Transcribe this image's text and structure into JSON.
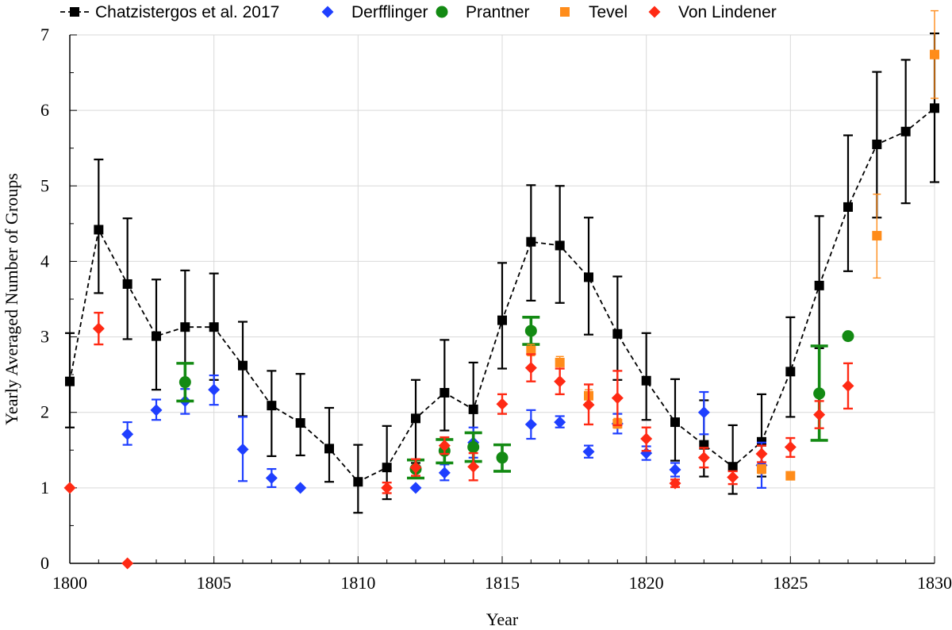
{
  "chart_data": {
    "type": "scatter",
    "xlabel": "Year",
    "ylabel": "Yearly Averaged Number of Groups",
    "xlim": [
      1800,
      1830
    ],
    "ylim": [
      0,
      7
    ],
    "xticks": [
      1800,
      1805,
      1810,
      1815,
      1820,
      1825,
      1830
    ],
    "yticks": [
      0,
      1,
      2,
      3,
      4,
      5,
      6,
      7
    ],
    "grid": true,
    "legend_position": "top",
    "series": [
      {
        "name": "Chatzistergos et al. 2017",
        "marker": "square",
        "color": "#000000",
        "line": "dashed",
        "points": [
          {
            "x": 1800,
            "y": 2.41,
            "lo": 1.8,
            "hi": 3.05
          },
          {
            "x": 1801,
            "y": 4.42,
            "lo": 3.58,
            "hi": 5.35
          },
          {
            "x": 1802,
            "y": 3.7,
            "lo": 2.97,
            "hi": 4.57
          },
          {
            "x": 1803,
            "y": 3.01,
            "lo": 2.3,
            "hi": 3.76
          },
          {
            "x": 1804,
            "y": 3.13,
            "lo": 2.4,
            "hi": 3.88
          },
          {
            "x": 1805,
            "y": 3.13,
            "lo": 2.43,
            "hi": 3.84
          },
          {
            "x": 1806,
            "y": 2.62,
            "lo": 1.95,
            "hi": 3.2
          },
          {
            "x": 1807,
            "y": 2.09,
            "lo": 1.42,
            "hi": 2.55
          },
          {
            "x": 1808,
            "y": 1.86,
            "lo": 1.43,
            "hi": 2.51
          },
          {
            "x": 1809,
            "y": 1.52,
            "lo": 1.08,
            "hi": 2.06
          },
          {
            "x": 1810,
            "y": 1.08,
            "lo": 0.67,
            "hi": 1.57
          },
          {
            "x": 1811,
            "y": 1.27,
            "lo": 0.85,
            "hi": 1.82
          },
          {
            "x": 1812,
            "y": 1.92,
            "lo": 1.33,
            "hi": 2.43
          },
          {
            "x": 1813,
            "y": 2.26,
            "lo": 1.76,
            "hi": 2.96
          },
          {
            "x": 1814,
            "y": 2.04,
            "lo": 1.55,
            "hi": 2.66
          },
          {
            "x": 1815,
            "y": 3.22,
            "lo": 2.58,
            "hi": 3.98
          },
          {
            "x": 1816,
            "y": 4.26,
            "lo": 3.48,
            "hi": 5.01
          },
          {
            "x": 1817,
            "y": 4.21,
            "lo": 3.45,
            "hi": 5.0
          },
          {
            "x": 1818,
            "y": 3.79,
            "lo": 3.03,
            "hi": 4.58
          },
          {
            "x": 1819,
            "y": 3.04,
            "lo": 2.43,
            "hi": 3.8
          },
          {
            "x": 1820,
            "y": 2.42,
            "lo": 1.9,
            "hi": 3.05
          },
          {
            "x": 1821,
            "y": 1.87,
            "lo": 1.36,
            "hi": 2.44
          },
          {
            "x": 1822,
            "y": 1.57,
            "lo": 1.15,
            "hi": 2.16
          },
          {
            "x": 1823,
            "y": 1.28,
            "lo": 0.92,
            "hi": 1.83
          },
          {
            "x": 1824,
            "y": 1.61,
            "lo": 1.15,
            "hi": 2.24
          },
          {
            "x": 1825,
            "y": 2.54,
            "lo": 1.94,
            "hi": 3.26
          },
          {
            "x": 1826,
            "y": 3.68,
            "lo": 2.85,
            "hi": 4.6
          },
          {
            "x": 1827,
            "y": 4.72,
            "lo": 3.87,
            "hi": 5.67
          },
          {
            "x": 1828,
            "y": 5.55,
            "lo": 4.58,
            "hi": 6.51
          },
          {
            "x": 1829,
            "y": 5.72,
            "lo": 4.77,
            "hi": 6.67
          },
          {
            "x": 1830,
            "y": 6.03,
            "lo": 5.05,
            "hi": 7.02
          }
        ]
      },
      {
        "name": "Derfflinger",
        "marker": "diamond",
        "color": "#1f3fff",
        "points": [
          {
            "x": 1802,
            "y": 1.71,
            "lo": 1.57,
            "hi": 1.87
          },
          {
            "x": 1803,
            "y": 2.03,
            "lo": 1.9,
            "hi": 2.17
          },
          {
            "x": 1804,
            "y": 2.15,
            "lo": 1.98,
            "hi": 2.31
          },
          {
            "x": 1805,
            "y": 2.3,
            "lo": 2.1,
            "hi": 2.49
          },
          {
            "x": 1806,
            "y": 1.51,
            "lo": 1.09,
            "hi": 1.94
          },
          {
            "x": 1807,
            "y": 1.13,
            "lo": 1.01,
            "hi": 1.25
          },
          {
            "x": 1808,
            "y": 1.0
          },
          {
            "x": 1812,
            "y": 1.0
          },
          {
            "x": 1813,
            "y": 1.2,
            "lo": 1.1,
            "hi": 1.31
          },
          {
            "x": 1814,
            "y": 1.6,
            "lo": 1.4,
            "hi": 1.8
          },
          {
            "x": 1816,
            "y": 1.84,
            "lo": 1.65,
            "hi": 2.03
          },
          {
            "x": 1817,
            "y": 1.87,
            "lo": 1.8,
            "hi": 1.95
          },
          {
            "x": 1818,
            "y": 1.48,
            "lo": 1.4,
            "hi": 1.56
          },
          {
            "x": 1819,
            "y": 1.85,
            "lo": 1.72,
            "hi": 1.98
          },
          {
            "x": 1820,
            "y": 1.46,
            "lo": 1.37,
            "hi": 1.55
          },
          {
            "x": 1821,
            "y": 1.24,
            "lo": 1.15,
            "hi": 1.33
          },
          {
            "x": 1822,
            "y": 2.0,
            "lo": 1.71,
            "hi": 2.27
          },
          {
            "x": 1824,
            "y": 1.3,
            "lo": 1.0,
            "hi": 1.6
          }
        ]
      },
      {
        "name": "Prantner",
        "marker": "circle",
        "color": "#138a13",
        "points": [
          {
            "x": 1804,
            "y": 2.4,
            "lo": 2.15,
            "hi": 2.65
          },
          {
            "x": 1812,
            "y": 1.25,
            "lo": 1.13,
            "hi": 1.37
          },
          {
            "x": 1813,
            "y": 1.49,
            "lo": 1.33,
            "hi": 1.64
          },
          {
            "x": 1814,
            "y": 1.54,
            "lo": 1.35,
            "hi": 1.73
          },
          {
            "x": 1815,
            "y": 1.4,
            "lo": 1.22,
            "hi": 1.57
          },
          {
            "x": 1816,
            "y": 3.08,
            "lo": 2.9,
            "hi": 3.26
          },
          {
            "x": 1826,
            "y": 2.25,
            "lo": 1.63,
            "hi": 2.88
          },
          {
            "x": 1827,
            "y": 3.01
          }
        ]
      },
      {
        "name": "Tevel",
        "marker": "square",
        "color": "#ff8c1a",
        "points": [
          {
            "x": 1816,
            "y": 2.82,
            "lo": 2.75,
            "hi": 2.9
          },
          {
            "x": 1817,
            "y": 2.66,
            "lo": 2.58,
            "hi": 2.74
          },
          {
            "x": 1818,
            "y": 2.22,
            "lo": 2.13,
            "hi": 2.3
          },
          {
            "x": 1819,
            "y": 1.85,
            "lo": 1.79,
            "hi": 1.92
          },
          {
            "x": 1824,
            "y": 1.25,
            "lo": 1.19,
            "hi": 1.3
          },
          {
            "x": 1825,
            "y": 1.16,
            "lo": 1.13,
            "hi": 1.2
          },
          {
            "x": 1828,
            "y": 4.34,
            "lo": 3.78,
            "hi": 4.89
          },
          {
            "x": 1830,
            "y": 6.74,
            "lo": 6.16,
            "hi": 7.32
          }
        ]
      },
      {
        "name": "Von Lindener",
        "marker": "diamond",
        "color": "#ff2a14",
        "points": [
          {
            "x": 1800,
            "y": 1.0
          },
          {
            "x": 1801,
            "y": 3.11,
            "lo": 2.9,
            "hi": 3.32
          },
          {
            "x": 1802,
            "y": 0.0
          },
          {
            "x": 1811,
            "y": 1.0,
            "lo": 0.93,
            "hi": 1.07
          },
          {
            "x": 1812,
            "y": 1.27,
            "lo": 1.16,
            "hi": 1.38
          },
          {
            "x": 1813,
            "y": 1.56,
            "lo": 1.45,
            "hi": 1.67
          },
          {
            "x": 1814,
            "y": 1.28,
            "lo": 1.1,
            "hi": 1.46
          },
          {
            "x": 1815,
            "y": 2.11,
            "lo": 1.98,
            "hi": 2.24
          },
          {
            "x": 1816,
            "y": 2.59,
            "lo": 2.41,
            "hi": 2.77
          },
          {
            "x": 1817,
            "y": 2.41,
            "lo": 2.24,
            "hi": 2.58
          },
          {
            "x": 1818,
            "y": 2.1,
            "lo": 1.84,
            "hi": 2.37
          },
          {
            "x": 1819,
            "y": 2.19,
            "lo": 1.83,
            "hi": 2.55
          },
          {
            "x": 1820,
            "y": 1.65,
            "lo": 1.49,
            "hi": 1.8
          },
          {
            "x": 1821,
            "y": 1.06,
            "lo": 1.01,
            "hi": 1.11
          },
          {
            "x": 1822,
            "y": 1.4,
            "lo": 1.27,
            "hi": 1.53
          },
          {
            "x": 1823,
            "y": 1.14,
            "lo": 1.05,
            "hi": 1.22
          },
          {
            "x": 1824,
            "y": 1.45,
            "lo": 1.34,
            "hi": 1.56
          },
          {
            "x": 1825,
            "y": 1.54,
            "lo": 1.41,
            "hi": 1.66
          },
          {
            "x": 1826,
            "y": 1.97,
            "lo": 1.79,
            "hi": 2.15
          },
          {
            "x": 1827,
            "y": 2.35,
            "lo": 2.05,
            "hi": 2.65
          }
        ]
      }
    ]
  }
}
